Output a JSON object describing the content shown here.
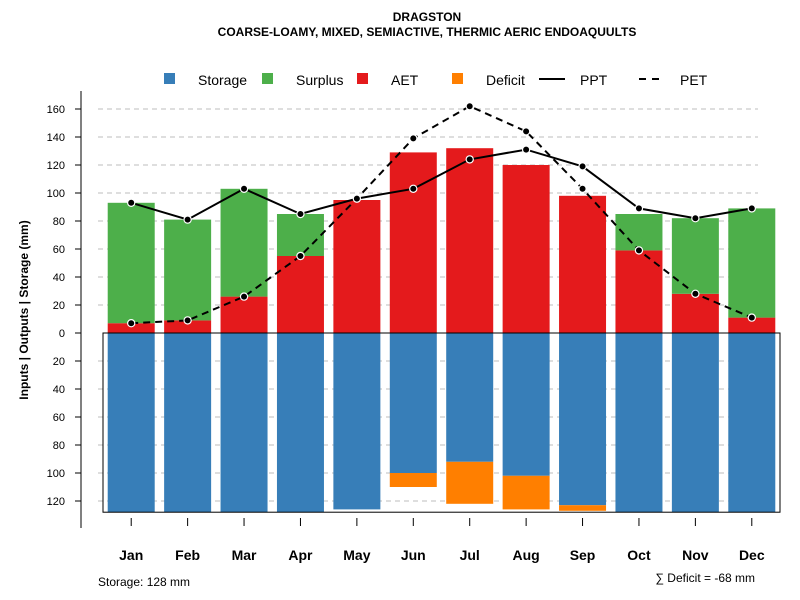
{
  "chart_data": {
    "type": "bar",
    "title": "DRAGSTON",
    "subtitle": "COARSE-LOAMY, MIXED, SEMIACTIVE, THERMIC AERIC ENDOAQUULTS",
    "ylabel": "Inputs | Outputs | Storage    (mm)",
    "ylim": [
      -128,
      165
    ],
    "yticks": [
      -120,
      -100,
      -80,
      -60,
      -40,
      -20,
      0,
      20,
      40,
      60,
      80,
      100,
      120,
      140,
      160
    ],
    "ytick_labels": [
      "120",
      "100",
      "80",
      "60",
      "40",
      "20",
      "0",
      "20",
      "40",
      "60",
      "80",
      "100",
      "120",
      "140",
      "160"
    ],
    "grid": "dashed horizontal",
    "categories": [
      "Jan",
      "Feb",
      "Mar",
      "Apr",
      "May",
      "Jun",
      "Jul",
      "Aug",
      "Sep",
      "Oct",
      "Nov",
      "Dec"
    ],
    "legend": [
      {
        "label": "Storage",
        "kind": "box",
        "color": "#377EB8"
      },
      {
        "label": "Surplus",
        "kind": "box",
        "color": "#4DAF4A"
      },
      {
        "label": "AET",
        "kind": "box",
        "color": "#E41A1C"
      },
      {
        "label": "Deficit",
        "kind": "box",
        "color": "#FF7F00"
      },
      {
        "label": "PPT",
        "kind": "solid-line",
        "color": "#000000"
      },
      {
        "label": "PET",
        "kind": "dashed-line",
        "color": "#000000"
      }
    ],
    "series": [
      {
        "name": "AET",
        "color": "#E41A1C",
        "values": [
          7,
          9,
          26,
          55,
          95,
          129,
          132,
          120,
          98,
          59,
          28,
          11
        ]
      },
      {
        "name": "Surplus",
        "color": "#4DAF4A",
        "values": [
          86,
          72,
          77,
          30,
          0,
          0,
          0,
          0,
          0,
          26,
          54,
          78
        ]
      },
      {
        "name": "Storage",
        "color": "#377EB8",
        "values": [
          128,
          128,
          128,
          128,
          126,
          100,
          92,
          102,
          123,
          128,
          128,
          128
        ]
      },
      {
        "name": "Deficit",
        "color": "#FF7F00",
        "values": [
          0,
          0,
          0,
          0,
          0,
          10,
          30,
          24,
          4,
          0,
          0,
          0
        ]
      },
      {
        "name": "PPT",
        "color": "#000000",
        "values": [
          93,
          81,
          103,
          85,
          96,
          103,
          124,
          131,
          119,
          89,
          82,
          89
        ]
      },
      {
        "name": "PET",
        "color": "#000000",
        "values": [
          7,
          9,
          26,
          55,
          96,
          139,
          162,
          144,
          103,
          59,
          28,
          11
        ]
      }
    ],
    "storage_capacity": 128,
    "notes": {
      "storage": "Storage: 128 mm",
      "deficit": "∑ Deficit = -68 mm"
    }
  }
}
